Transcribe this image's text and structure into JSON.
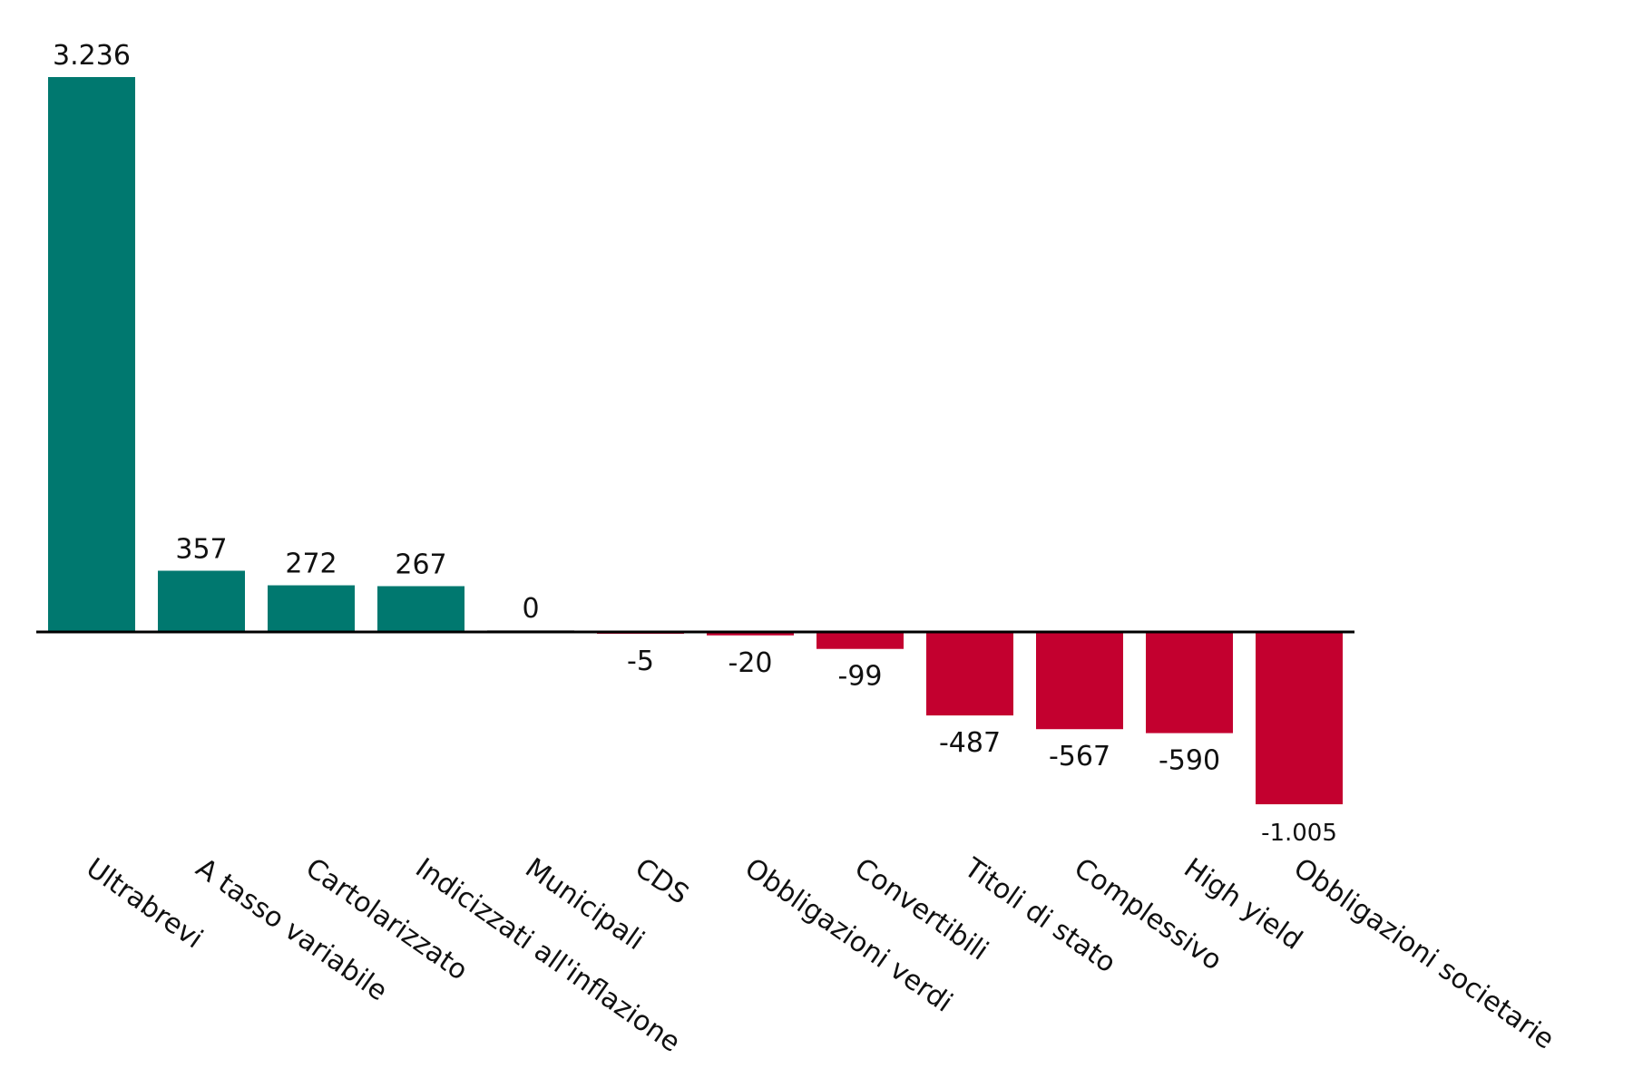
{
  "chart_data": {
    "type": "bar",
    "title": "",
    "xlabel": "",
    "ylabel": "",
    "categories": [
      "Ultrabrevi",
      "A tasso variabile",
      "Cartolarizzato",
      "Indicizzati all'inflazione",
      "Municipali",
      "CDS",
      "Obbligazioni verdi",
      "Convertibili",
      "Titoli di stato",
      "Complessivo",
      "High yield",
      "Obbligazioni societarie"
    ],
    "values": [
      3236,
      357,
      272,
      267,
      0,
      -5,
      -20,
      -99,
      -487,
      -567,
      -590,
      -1005
    ],
    "value_labels": [
      "3.236",
      "357",
      "272",
      "267",
      "0",
      "-5",
      "-20",
      "-99",
      "-487",
      "-567",
      "-590",
      "-1.005"
    ],
    "colors": {
      "positive": "#00786F",
      "negative": "#C3002F",
      "zero": "#bfbfbf",
      "baseline": "#000000"
    },
    "grid": false,
    "legend": "none"
  }
}
